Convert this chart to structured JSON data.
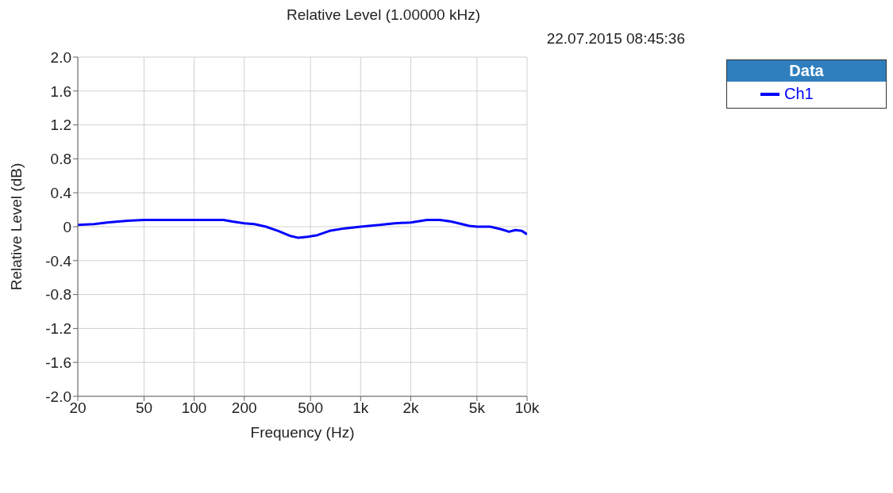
{
  "chart_data": {
    "type": "line",
    "title": "Relative Level (1.00000 kHz)",
    "annotations": [
      "22.07.2015 08:45:36"
    ],
    "xlabel": "Frequency (Hz)",
    "ylabel": "Relative Level (dB)",
    "legend_title": "Data",
    "legend": "top right",
    "grid": true,
    "marker": "none",
    "line_style": "solid",
    "log": "x",
    "xlim": [
      20,
      10000
    ],
    "xticks": [
      20,
      50,
      100,
      200,
      500,
      {
        "value": 1000,
        "label": "1k"
      },
      {
        "value": 2000,
        "label": "2k"
      },
      {
        "value": 5000,
        "label": "5k"
      },
      {
        "value": 10000,
        "label": "10k"
      }
    ],
    "ylim": [
      -2,
      2
    ],
    "yticks": [
      {
        "value": -2,
        "label": "-2.0"
      },
      -1.6,
      -1.2,
      -0.8,
      -0.4,
      0,
      0.4,
      0.8,
      1.2,
      1.6,
      {
        "value": 2,
        "label": "2.0"
      }
    ],
    "x": [
      20,
      25,
      30,
      35,
      40,
      50,
      100,
      150,
      170,
      200,
      230,
      270,
      320,
      380,
      420,
      480,
      550,
      650,
      800,
      1000,
      1300,
      1600,
      2000,
      2500,
      3000,
      3500,
      4500,
      5000,
      6000,
      7000,
      7800,
      8500,
      9300,
      10000
    ],
    "series": [
      {
        "name": "Ch1",
        "color": "#0000ff",
        "values": [
          0.02,
          0.03,
          0.05,
          0.06,
          0.07,
          0.08,
          0.08,
          0.08,
          0.06,
          0.04,
          0.03,
          0.0,
          -0.05,
          -0.11,
          -0.13,
          -0.12,
          -0.1,
          -0.05,
          -0.02,
          0.0,
          0.02,
          0.04,
          0.05,
          0.08,
          0.08,
          0.06,
          0.01,
          0.0,
          0.0,
          -0.03,
          -0.06,
          -0.04,
          -0.05,
          -0.09
        ]
      }
    ]
  }
}
